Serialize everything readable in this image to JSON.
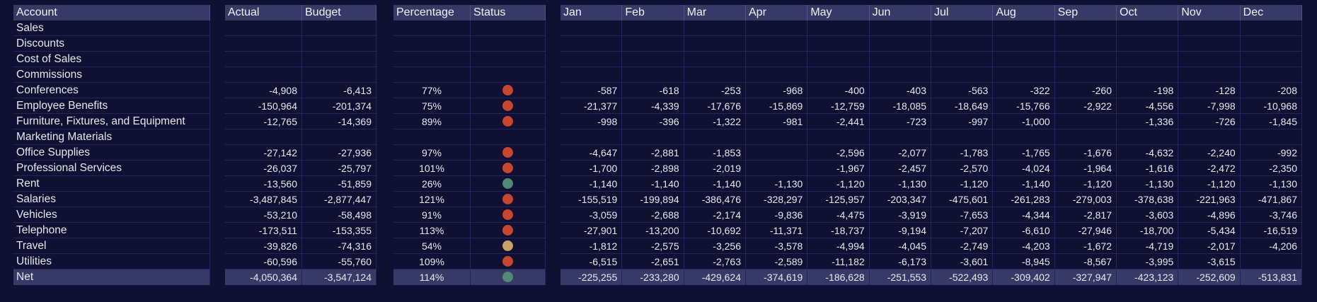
{
  "headers": {
    "account": "Account",
    "actual": "Actual",
    "budget": "Budget",
    "percentage": "Percentage",
    "status": "Status",
    "months": [
      "Jan",
      "Feb",
      "Mar",
      "Apr",
      "May",
      "Jun",
      "Jul",
      "Aug",
      "Sep",
      "Oct",
      "Nov",
      "Dec"
    ]
  },
  "status_colors": {
    "red": "#c4472e",
    "green": "#4e8a74",
    "yellow": "#c8a268"
  },
  "rows": [
    {
      "account": "Sales",
      "actual": "",
      "budget": "",
      "percentage": "",
      "status": "",
      "months": [
        "",
        "",
        "",
        "",
        "",
        "",
        "",
        "",
        "",
        "",
        "",
        ""
      ]
    },
    {
      "account": "Discounts",
      "actual": "",
      "budget": "",
      "percentage": "",
      "status": "",
      "months": [
        "",
        "",
        "",
        "",
        "",
        "",
        "",
        "",
        "",
        "",
        "",
        ""
      ]
    },
    {
      "account": "Cost of Sales",
      "actual": "",
      "budget": "",
      "percentage": "",
      "status": "",
      "months": [
        "",
        "",
        "",
        "",
        "",
        "",
        "",
        "",
        "",
        "",
        "",
        ""
      ]
    },
    {
      "account": "Commissions",
      "actual": "",
      "budget": "",
      "percentage": "",
      "status": "",
      "months": [
        "",
        "",
        "",
        "",
        "",
        "",
        "",
        "",
        "",
        "",
        "",
        ""
      ]
    },
    {
      "account": "Conferences",
      "actual": "-4,908",
      "budget": "-6,413",
      "percentage": "77%",
      "status": "red",
      "months": [
        "-587",
        "-618",
        "-253",
        "-968",
        "-400",
        "-403",
        "-563",
        "-322",
        "-260",
        "-198",
        "-128",
        "-208"
      ]
    },
    {
      "account": "Employee Benefits",
      "actual": "-150,964",
      "budget": "-201,374",
      "percentage": "75%",
      "status": "red",
      "months": [
        "-21,377",
        "-4,339",
        "-17,676",
        "-15,869",
        "-12,759",
        "-18,085",
        "-18,649",
        "-15,766",
        "-2,922",
        "-4,556",
        "-7,998",
        "-10,968"
      ]
    },
    {
      "account": "Furniture, Fixtures, and Equipment",
      "actual": "-12,765",
      "budget": "-14,369",
      "percentage": "89%",
      "status": "red",
      "months": [
        "-998",
        "-396",
        "-1,322",
        "-981",
        "-2,441",
        "-723",
        "-997",
        "-1,000",
        "",
        "-1,336",
        "-726",
        "-1,845"
      ]
    },
    {
      "account": "Marketing Materials",
      "actual": "",
      "budget": "",
      "percentage": "",
      "status": "",
      "months": [
        "",
        "",
        "",
        "",
        "",
        "",
        "",
        "",
        "",
        "",
        "",
        ""
      ]
    },
    {
      "account": "Office Supplies",
      "actual": "-27,142",
      "budget": "-27,936",
      "percentage": "97%",
      "status": "red",
      "months": [
        "-4,647",
        "-2,881",
        "-1,853",
        "",
        "-2,596",
        "-2,077",
        "-1,783",
        "-1,765",
        "-1,676",
        "-4,632",
        "-2,240",
        "-992"
      ]
    },
    {
      "account": "Professional Services",
      "actual": "-26,037",
      "budget": "-25,797",
      "percentage": "101%",
      "status": "red",
      "months": [
        "-1,700",
        "-2,898",
        "-2,019",
        "",
        "-1,967",
        "-2,457",
        "-2,570",
        "-4,024",
        "-1,964",
        "-1,616",
        "-2,472",
        "-2,350"
      ]
    },
    {
      "account": "Rent",
      "actual": "-13,560",
      "budget": "-51,859",
      "percentage": "26%",
      "status": "green",
      "months": [
        "-1,140",
        "-1,140",
        "-1,140",
        "-1,130",
        "-1,120",
        "-1,130",
        "-1,120",
        "-1,140",
        "-1,120",
        "-1,130",
        "-1,120",
        "-1,130"
      ]
    },
    {
      "account": "Salaries",
      "actual": "-3,487,845",
      "budget": "-2,877,447",
      "percentage": "121%",
      "status": "red",
      "months": [
        "-155,519",
        "-199,894",
        "-386,476",
        "-328,297",
        "-125,957",
        "-203,347",
        "-475,601",
        "-261,283",
        "-279,003",
        "-378,638",
        "-221,963",
        "-471,867"
      ]
    },
    {
      "account": "Vehicles",
      "actual": "-53,210",
      "budget": "-58,498",
      "percentage": "91%",
      "status": "red",
      "months": [
        "-3,059",
        "-2,688",
        "-2,174",
        "-9,836",
        "-4,475",
        "-3,919",
        "-7,653",
        "-4,344",
        "-2,817",
        "-3,603",
        "-4,896",
        "-3,746"
      ]
    },
    {
      "account": "Telephone",
      "actual": "-173,511",
      "budget": "-153,355",
      "percentage": "113%",
      "status": "red",
      "months": [
        "-27,901",
        "-13,200",
        "-10,692",
        "-11,371",
        "-18,737",
        "-9,194",
        "-7,207",
        "-6,610",
        "-27,946",
        "-18,700",
        "-5,434",
        "-16,519"
      ]
    },
    {
      "account": "Travel",
      "actual": "-39,826",
      "budget": "-74,316",
      "percentage": "54%",
      "status": "yellow",
      "months": [
        "-1,812",
        "-2,575",
        "-3,256",
        "-3,578",
        "-4,994",
        "-4,045",
        "-2,749",
        "-4,203",
        "-1,672",
        "-4,719",
        "-2,017",
        "-4,206"
      ]
    },
    {
      "account": "Utilities",
      "actual": "-60,596",
      "budget": "-55,760",
      "percentage": "109%",
      "status": "red",
      "months": [
        "-6,515",
        "-2,651",
        "-2,763",
        "-2,589",
        "-11,182",
        "-6,173",
        "-3,601",
        "-8,945",
        "-8,567",
        "-3,995",
        "-3,615",
        ""
      ]
    },
    {
      "account": "Net",
      "actual": "-4,050,364",
      "budget": "-3,547,124",
      "percentage": "114%",
      "status": "green",
      "months": [
        "-225,255",
        "-233,280",
        "-429,624",
        "-374,619",
        "-186,628",
        "-251,553",
        "-522,493",
        "-309,402",
        "-327,947",
        "-423,123",
        "-252,609",
        "-513,831"
      ]
    }
  ]
}
